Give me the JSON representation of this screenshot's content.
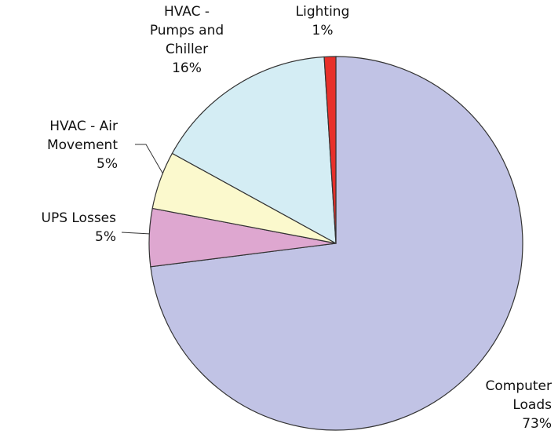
{
  "chart_data": {
    "type": "pie",
    "categories": [
      "Computer\nLoads",
      "UPS Losses",
      "HVAC - Air\nMovement",
      "HVAC -\nPumps and\nChiller",
      "Lighting"
    ],
    "values": [
      73,
      5,
      5,
      16,
      1
    ],
    "value_labels": [
      "73%",
      "5%",
      "5%",
      "16%",
      "1%"
    ],
    "colors": [
      "#c1c3e5",
      "#dea7d0",
      "#fbf9cd",
      "#d4edf4",
      "#e8302a"
    ]
  }
}
